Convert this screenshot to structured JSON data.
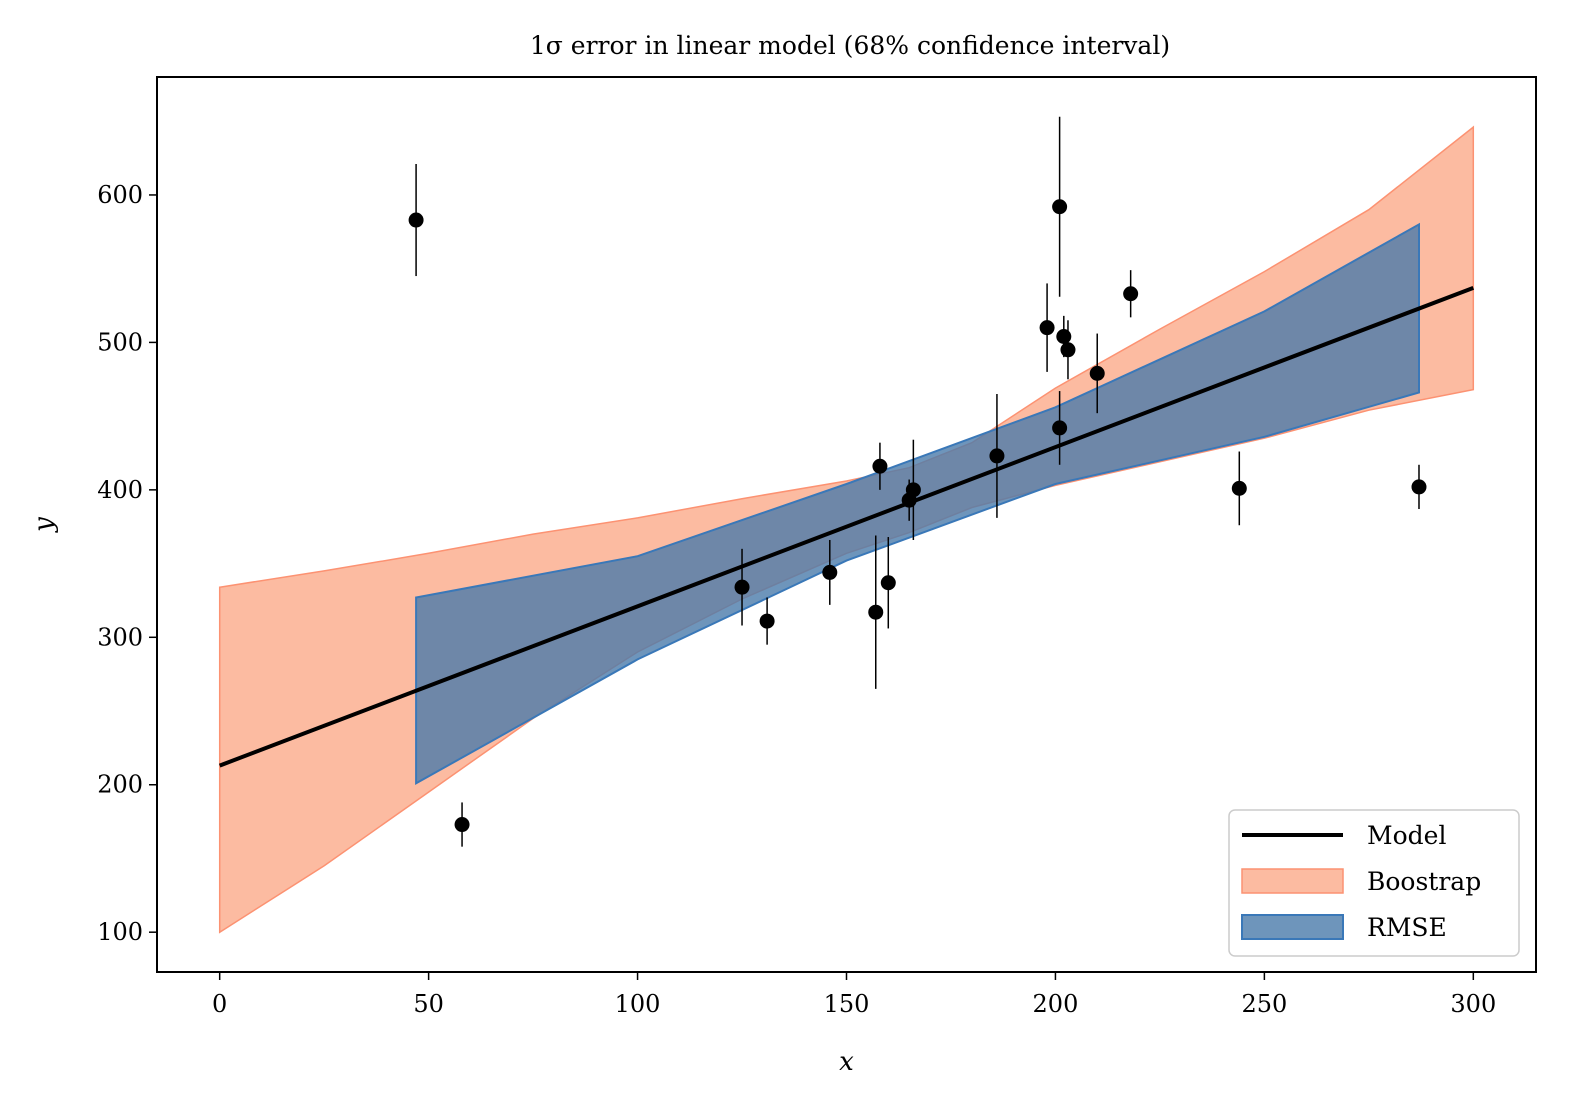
{
  "chart_data": {
    "type": "scatter",
    "title": "1σ error in linear model (68% confidence interval)",
    "xlabel": "x",
    "ylabel": "y",
    "xlim": [
      -15,
      315
    ],
    "ylim": [
      73,
      680
    ],
    "xticks": [
      0,
      50,
      100,
      150,
      200,
      250,
      300
    ],
    "yticks": [
      100,
      200,
      300,
      400,
      500,
      600
    ],
    "grid": false,
    "legend_position": "lower-right",
    "colors": {
      "model": "#000000",
      "bootstrap_fill": "#fcbba1",
      "bootstrap_edge": "#fc9272",
      "rmse_fill": "#4a7aaa",
      "rmse_edge": "#3a78b8",
      "points": "#000000"
    },
    "legend": [
      {
        "label": "Model",
        "kind": "line"
      },
      {
        "label": "Boostrap",
        "kind": "bootstrap"
      },
      {
        "label": "RMSE",
        "kind": "rmse"
      }
    ],
    "model": {
      "label": "Model",
      "x": [
        0,
        300
      ],
      "y": [
        213,
        537
      ]
    },
    "bootstrap_band": {
      "label": "Boostrap",
      "x": [
        0,
        25,
        50,
        75,
        100,
        125,
        150,
        165,
        180,
        200,
        225,
        250,
        275,
        300
      ],
      "upper": [
        334,
        345,
        357,
        370,
        381,
        394,
        406,
        415,
        432,
        469,
        509,
        548,
        590,
        646
      ],
      "lower": [
        100,
        145,
        195,
        245,
        290,
        326,
        357,
        371,
        388,
        403,
        419,
        435,
        454,
        468
      ]
    },
    "rmse_band": {
      "label": "RMSE",
      "x": [
        47,
        100,
        150,
        200,
        250,
        287
      ],
      "upper": [
        327,
        355,
        404,
        456,
        521,
        580
      ],
      "lower": [
        201,
        285,
        352,
        404,
        436,
        466
      ]
    },
    "points": [
      {
        "x": 47,
        "y": 583,
        "err": 38
      },
      {
        "x": 58,
        "y": 173,
        "err": 15
      },
      {
        "x": 125,
        "y": 334,
        "err": 26
      },
      {
        "x": 131,
        "y": 311,
        "err": 16
      },
      {
        "x": 146,
        "y": 344,
        "err": 22
      },
      {
        "x": 157,
        "y": 317,
        "err": 52
      },
      {
        "x": 158,
        "y": 416,
        "err": 16
      },
      {
        "x": 160,
        "y": 337,
        "err": 31
      },
      {
        "x": 165,
        "y": 393,
        "err": 14
      },
      {
        "x": 166,
        "y": 400,
        "err": 34
      },
      {
        "x": 186,
        "y": 423,
        "err": 42
      },
      {
        "x": 198,
        "y": 510,
        "err": 30
      },
      {
        "x": 201,
        "y": 592,
        "err": 61
      },
      {
        "x": 201,
        "y": 442,
        "err": 25
      },
      {
        "x": 202,
        "y": 504,
        "err": 14
      },
      {
        "x": 203,
        "y": 495,
        "err": 20
      },
      {
        "x": 210,
        "y": 479,
        "err": 27
      },
      {
        "x": 218,
        "y": 533,
        "err": 16
      },
      {
        "x": 244,
        "y": 401,
        "err": 25
      },
      {
        "x": 287,
        "y": 402,
        "err": 15
      }
    ]
  }
}
